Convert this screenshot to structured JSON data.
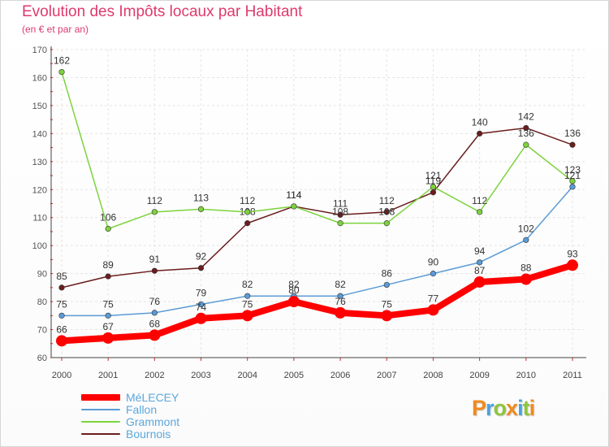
{
  "chart_data": {
    "type": "line",
    "title": "Evolution des Impôts locaux par Habitant",
    "subtitle": "(en € et par an)",
    "xlabel": "",
    "ylabel": "",
    "ylim": [
      60,
      170
    ],
    "yticks": [
      60,
      70,
      80,
      90,
      100,
      110,
      120,
      130,
      140,
      150,
      160,
      170
    ],
    "categories": [
      "2000",
      "2001",
      "2002",
      "2003",
      "2004",
      "2005",
      "2006",
      "2007",
      "2008",
      "2009",
      "2010",
      "2011"
    ],
    "grid": true,
    "legend_position": "bottom-left",
    "series": [
      {
        "name": "Bournois",
        "color": "#6b1d1d",
        "values": [
          85,
          89,
          91,
          92,
          108,
          114,
          111,
          112,
          119,
          140,
          142,
          136
        ],
        "labels": [
          "85",
          "89",
          "91",
          "92",
          "108",
          "114",
          "111",
          "112",
          "119",
          "140",
          "142",
          "136"
        ]
      },
      {
        "name": "Grammont",
        "color": "#7dd33e",
        "values": [
          162,
          106,
          112,
          113,
          112,
          114,
          108,
          108,
          121,
          112,
          136,
          123
        ],
        "labels": [
          "162",
          "106",
          "112",
          "113",
          "112",
          "114",
          "108",
          "108",
          "121",
          "112",
          "136",
          "123"
        ]
      },
      {
        "name": "Fallon",
        "color": "#5b9bd5",
        "values": [
          75,
          75,
          76,
          79,
          82,
          82,
          82,
          86,
          90,
          94,
          102,
          121
        ],
        "labels": [
          "75",
          "75",
          "76",
          "79",
          "82",
          "82",
          "82",
          "86",
          "90",
          "94",
          "102",
          "121"
        ]
      },
      {
        "name": "MéLECEY",
        "color": "#ff0000",
        "values": [
          66,
          67,
          68,
          74,
          75,
          80,
          76,
          75,
          77,
          87,
          88,
          93
        ],
        "labels": [
          "66",
          "67",
          "68",
          "74",
          "75",
          "80",
          "76",
          "75",
          "77",
          "87",
          "88",
          "93"
        ]
      }
    ]
  },
  "legend": {
    "items": [
      {
        "label": "MéLECEY",
        "color": "#ff0000"
      },
      {
        "label": "Fallon",
        "color": "#5b9bd5"
      },
      {
        "label": "Grammont",
        "color": "#7dd33e"
      },
      {
        "label": "Bournois",
        "color": "#6b1d1d"
      }
    ]
  },
  "logo": {
    "letters": [
      "P",
      "r",
      "o",
      "x",
      "i",
      "t",
      "i"
    ],
    "colors": [
      "#f18a1e",
      "#4aa3df",
      "#8dc63f",
      "#f18a1e",
      "#4aa3df",
      "#8dc63f",
      "#f18a1e"
    ]
  }
}
